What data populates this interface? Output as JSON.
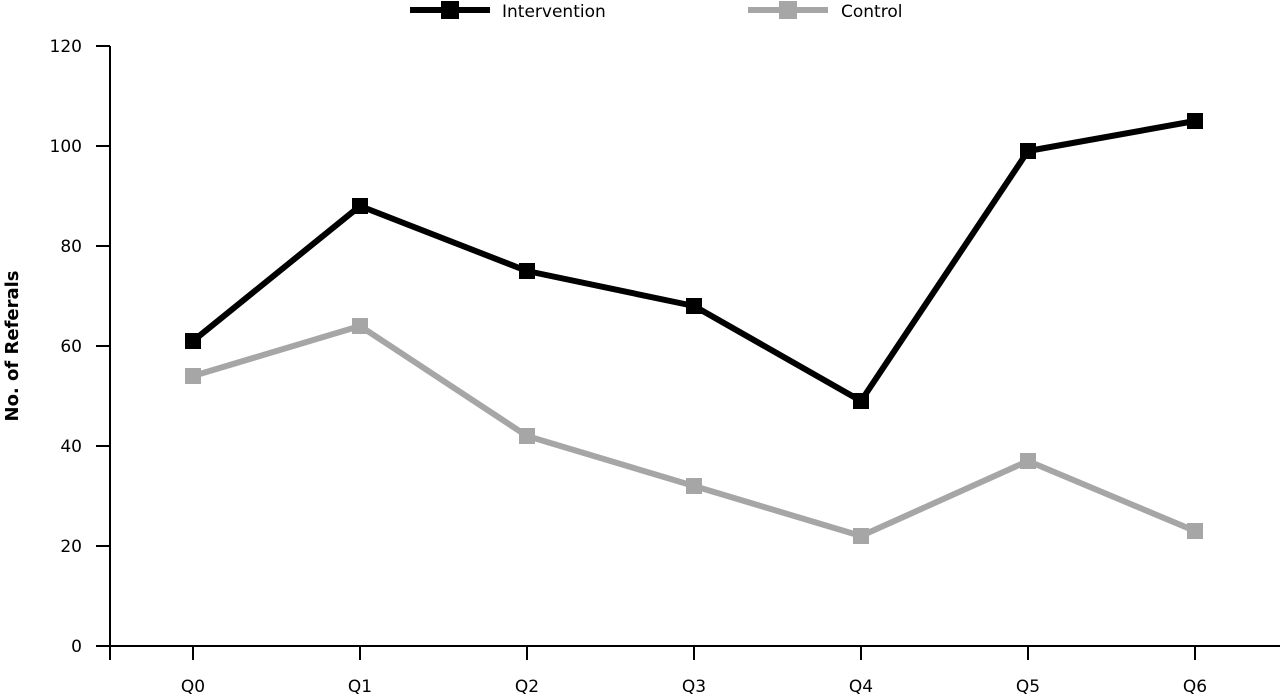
{
  "chart_data": {
    "type": "line",
    "title": "",
    "xlabel": "",
    "ylabel": "No. of Referals",
    "categories": [
      "Q0",
      "Q1",
      "Q2",
      "Q3",
      "Q4",
      "Q5",
      "Q6"
    ],
    "ylim": [
      0,
      120
    ],
    "yticks": [
      0,
      20,
      40,
      60,
      80,
      100,
      120
    ],
    "grid": false,
    "legend_position": "top",
    "series": [
      {
        "name": "Intervention",
        "values": [
          61,
          88,
          75,
          68,
          49,
          99,
          105
        ],
        "color": "#000000",
        "marker": "square"
      },
      {
        "name": "Control",
        "values": [
          54,
          64,
          42,
          32,
          22,
          37,
          23
        ],
        "color": "#a6a6a6",
        "marker": "square"
      }
    ]
  }
}
